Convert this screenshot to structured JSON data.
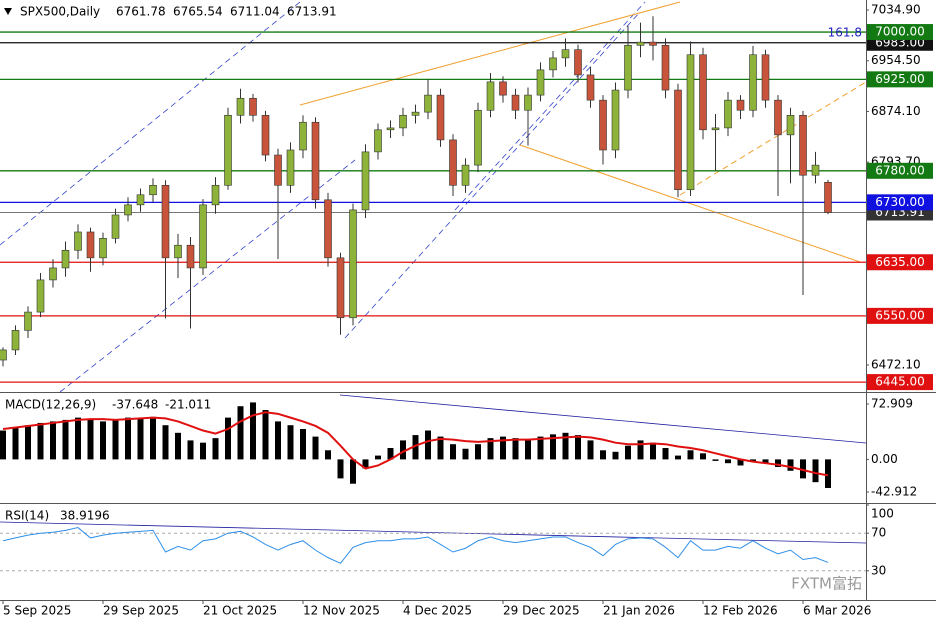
{
  "chart_data": [
    {
      "type": "candlestick",
      "title": "SPX500,Daily",
      "categories": [
        "5 Sep 2025",
        null,
        null,
        null,
        null,
        null,
        null,
        null,
        "29 Sep 2025",
        null,
        null,
        null,
        null,
        null,
        null,
        null,
        "21 Oct 2025",
        null,
        null,
        null,
        null,
        null,
        null,
        null,
        "12 Nov 2025",
        null,
        null,
        null,
        null,
        null,
        null,
        null,
        "4 Dec 2025",
        null,
        null,
        null,
        null,
        null,
        null,
        null,
        "29 Dec 2025",
        null,
        null,
        null,
        null,
        null,
        null,
        null,
        "21 Jan 2026",
        null,
        null,
        null,
        null,
        null,
        null,
        null,
        "12 Feb 2026",
        null,
        null,
        null,
        null,
        null,
        null,
        null,
        "6 Mar 2026",
        null,
        null
      ],
      "open": [
        6480,
        6496,
        6527,
        6556,
        6607,
        6626,
        6654,
        6683,
        6642,
        6673,
        6710,
        6726,
        6742,
        6757,
        6642,
        6662,
        6626,
        6726,
        6757,
        6868,
        6895,
        6868,
        6805,
        6757,
        6813,
        6857,
        6734,
        6642,
        6547,
        6718,
        6810,
        6845,
        6848,
        6868,
        6873,
        6900,
        6829,
        6757,
        6789,
        6876,
        6921,
        6900,
        6876,
        6900,
        6940,
        6959,
        6972,
        6932,
        6892,
        6813,
        6908,
        6979,
        6984,
        6979,
        6908,
        6750,
        6964,
        6845,
        6848,
        6892,
        6876,
        6964,
        6892,
        6837,
        6868,
        6773,
        6761.78
      ],
      "high": [
        6500,
        6535,
        6565,
        6618,
        6640,
        6668,
        6695,
        6690,
        6682,
        6720,
        6738,
        6752,
        6768,
        6765,
        6680,
        6675,
        6735,
        6770,
        6880,
        6910,
        6902,
        6875,
        6815,
        6825,
        6868,
        6865,
        6745,
        6650,
        6728,
        6822,
        6855,
        6860,
        6880,
        6885,
        6925,
        6910,
        6838,
        6800,
        6888,
        6935,
        6930,
        6910,
        6912,
        6952,
        6970,
        6990,
        6980,
        6945,
        6900,
        6920,
        7010,
        7015,
        7025,
        6990,
        6918,
        6985,
        6975,
        6870,
        6905,
        6900,
        6978,
        6972,
        6900,
        6880,
        6875,
        6810,
        6765.54
      ],
      "low": [
        6470,
        6488,
        6515,
        6548,
        6595,
        6612,
        6640,
        6620,
        6630,
        6665,
        6700,
        6715,
        6730,
        6546,
        6610,
        6530,
        6615,
        6712,
        6750,
        6855,
        6858,
        6795,
        6640,
        6745,
        6800,
        6720,
        6628,
        6520,
        6535,
        6705,
        6798,
        6832,
        6835,
        6855,
        6862,
        6818,
        6740,
        6745,
        6778,
        6865,
        6888,
        6862,
        6820,
        6890,
        6928,
        6945,
        6920,
        6880,
        6790,
        6800,
        6895,
        6960,
        6955,
        6895,
        6738,
        6740,
        6830,
        6780,
        6835,
        6862,
        6865,
        6880,
        6740,
        6760,
        6583,
        6760,
        6711.04
      ],
      "close": [
        6496,
        6527,
        6556,
        6607,
        6626,
        6654,
        6683,
        6642,
        6673,
        6710,
        6726,
        6742,
        6757,
        6642,
        6662,
        6626,
        6726,
        6757,
        6868,
        6895,
        6868,
        6805,
        6757,
        6813,
        6857,
        6734,
        6642,
        6547,
        6718,
        6810,
        6845,
        6848,
        6868,
        6873,
        6900,
        6829,
        6757,
        6789,
        6876,
        6921,
        6900,
        6876,
        6900,
        6940,
        6959,
        6972,
        6932,
        6892,
        6813,
        6908,
        6979,
        6984,
        6979,
        6908,
        6750,
        6964,
        6845,
        6848,
        6892,
        6876,
        6964,
        6892,
        6837,
        6868,
        6773,
        6789,
        6713.91
      ],
      "up_color": "#8db33a",
      "down_color": "#c8553b",
      "ylim": [
        6429.3,
        7050.8
      ],
      "yticks": [
        {
          "value": 7034.9,
          "label": "7034.90"
        },
        {
          "value": 6954.5,
          "label": "6954.50"
        },
        {
          "value": 6874.1,
          "label": "6874.10"
        },
        {
          "value": 6793.7,
          "label": "6793.70"
        },
        {
          "value": 6472.1,
          "label": "6472.10"
        }
      ],
      "levels": [
        {
          "value": 6983,
          "label": "6983.00",
          "color": "#111111"
        },
        {
          "value": 7000,
          "label": "7000.00",
          "color": "#137a13"
        },
        {
          "value": 6925,
          "label": "6925.00",
          "color": "#137a13"
        },
        {
          "value": 6780,
          "label": "6780.00",
          "color": "#137a13"
        },
        {
          "value": 6730,
          "label": "6730.00",
          "color": "#1010e0"
        },
        {
          "value": 6635,
          "label": "6635.00",
          "color": "#e01010"
        },
        {
          "value": 6550,
          "label": "6550.00",
          "color": "#e01010"
        },
        {
          "value": 6445,
          "label": "6445.00",
          "color": "#e01010"
        }
      ],
      "annotation": "161.8",
      "watermark": "FXTM富拓"
    },
    {
      "type": "macd",
      "label": "MACD(12,26,9)",
      "histogram": [
        38,
        42,
        45,
        48,
        50,
        52,
        55,
        52,
        50,
        52,
        55,
        55,
        56,
        45,
        35,
        25,
        22,
        28,
        55,
        70,
        75,
        65,
        50,
        45,
        40,
        30,
        12,
        -25,
        -32,
        -12,
        5,
        15,
        25,
        32,
        38,
        30,
        20,
        14,
        20,
        28,
        30,
        28,
        26,
        30,
        33,
        35,
        32,
        25,
        12,
        10,
        18,
        25,
        22,
        15,
        5,
        12,
        8,
        -2,
        -5,
        -8,
        -3,
        -5,
        -10,
        -15,
        -25,
        -30,
        -37.648
      ],
      "signal": [
        40,
        42,
        44,
        46,
        48,
        50,
        52,
        53,
        53,
        52,
        53,
        54,
        55,
        54,
        50,
        44,
        38,
        34,
        40,
        50,
        58,
        62,
        60,
        55,
        50,
        44,
        35,
        18,
        0,
        -12,
        -8,
        0,
        10,
        18,
        24,
        27,
        26,
        24,
        23,
        24,
        25,
        26,
        26,
        27,
        28,
        29,
        30,
        29,
        26,
        22,
        20,
        20,
        21,
        20,
        17,
        15,
        12,
        8,
        4,
        0,
        -3,
        -5,
        -7,
        -10,
        -14,
        -18,
        -21.011
      ],
      "histogram_color": "#000000",
      "signal_color": "#e01010",
      "ylim": [
        -56.1,
        86.1
      ],
      "yticks": [
        72.909,
        {
          "value": 0,
          "label": "0.00"
        },
        -42.912
      ]
    },
    {
      "type": "line",
      "label": "RSI(14)",
      "values": [
        62,
        65,
        68,
        70,
        71,
        73,
        76,
        65,
        68,
        70,
        71,
        72,
        73,
        50,
        56,
        52,
        62,
        64,
        70,
        72,
        66,
        58,
        52,
        58,
        62,
        52,
        44,
        38,
        55,
        60,
        62,
        62,
        64,
        64,
        66,
        58,
        50,
        54,
        62,
        66,
        62,
        60,
        62,
        64,
        66,
        66,
        60,
        55,
        46,
        58,
        64,
        65,
        64,
        55,
        44,
        62,
        52,
        52,
        56,
        54,
        62,
        54,
        48,
        52,
        42,
        44,
        38.9196
      ],
      "color": "#2f8fe8",
      "ylim": [
        0,
        100
      ],
      "yticks": [
        100,
        70,
        30
      ],
      "grid_levels": [
        70,
        30
      ]
    }
  ]
}
